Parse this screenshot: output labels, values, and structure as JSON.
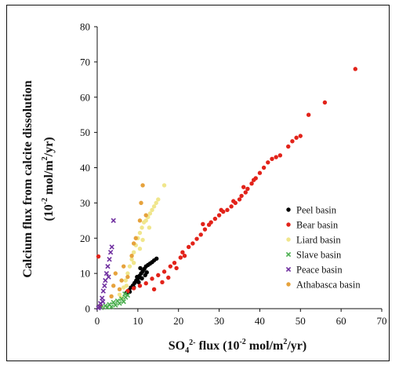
{
  "chart_data": {
    "type": "scatter",
    "xlim": [
      0,
      70
    ],
    "ylim": [
      0,
      80
    ],
    "x_ticks": [
      "0",
      "10",
      "20",
      "30",
      "40",
      "50",
      "60",
      "70"
    ],
    "y_ticks": [
      "0",
      "10",
      "20",
      "30",
      "40",
      "50",
      "60",
      "70",
      "80"
    ],
    "xlabel": {
      "base": "SO",
      "sub": "4",
      "sup": "2-",
      "rest": " flux (10",
      "exp": "-2",
      "rest2": " mol/m",
      "sq": "2",
      "rest3": "/yr)"
    },
    "ylabel_line1": "Calcium flux from calcite dissolution",
    "ylabel_line2": {
      "pre": "(10",
      "exp": "-2",
      "mid": " mol/m",
      "sq": "2",
      "post": "/yr)"
    },
    "legend_position": "lower-right",
    "grid": false,
    "series": [
      {
        "name": "Peel basin",
        "color": "#000000",
        "marker": "circle",
        "points": [
          [
            7.2,
            4.5
          ],
          [
            7.8,
            5.2
          ],
          [
            8.3,
            6.0
          ],
          [
            8.8,
            6.6
          ],
          [
            9.2,
            7.3
          ],
          [
            9.6,
            8.0
          ],
          [
            10.0,
            8.5
          ],
          [
            10.4,
            9.3
          ],
          [
            10.8,
            10.0
          ],
          [
            11.2,
            10.6
          ],
          [
            11.6,
            11.3
          ],
          [
            12.0,
            12.0
          ],
          [
            12.5,
            12.4
          ],
          [
            13.0,
            12.8
          ],
          [
            13.5,
            13.2
          ],
          [
            14.0,
            13.7
          ],
          [
            14.6,
            14.2
          ],
          [
            9.0,
            6.0
          ],
          [
            10.2,
            7.5
          ],
          [
            11.0,
            8.6
          ],
          [
            12.2,
            10.3
          ],
          [
            8.0,
            4.8
          ],
          [
            9.8,
            9.0
          ],
          [
            10.6,
            11.5
          ],
          [
            11.8,
            9.5
          ]
        ]
      },
      {
        "name": "Bear basin",
        "color": "#e2231a",
        "marker": "circle",
        "points": [
          [
            0.3,
            14.8
          ],
          [
            0.8,
            0.5
          ],
          [
            7.5,
            5.0
          ],
          [
            9.0,
            5.8
          ],
          [
            10.5,
            6.5
          ],
          [
            12.0,
            7.2
          ],
          [
            13.5,
            8.5
          ],
          [
            15.0,
            9.5
          ],
          [
            16.5,
            10.5
          ],
          [
            18.0,
            12.0
          ],
          [
            19.0,
            13.0
          ],
          [
            20.5,
            14.5
          ],
          [
            21.0,
            16.0
          ],
          [
            22.5,
            17.5
          ],
          [
            23.5,
            18.5
          ],
          [
            24.5,
            19.8
          ],
          [
            25.5,
            21.0
          ],
          [
            26.5,
            22.5
          ],
          [
            27.5,
            23.8
          ],
          [
            28.0,
            24.5
          ],
          [
            29.0,
            25.5
          ],
          [
            30.0,
            26.5
          ],
          [
            31.0,
            27.5
          ],
          [
            32.0,
            28.0
          ],
          [
            33.0,
            29.0
          ],
          [
            34.0,
            30.0
          ],
          [
            35.0,
            31.0
          ],
          [
            35.5,
            32.0
          ],
          [
            36.5,
            33.0
          ],
          [
            37.0,
            34.0
          ],
          [
            38.0,
            35.5
          ],
          [
            39.0,
            37.0
          ],
          [
            40.0,
            38.5
          ],
          [
            41.0,
            40.0
          ],
          [
            42.0,
            41.5
          ],
          [
            43.0,
            42.5
          ],
          [
            45.0,
            43.5
          ],
          [
            47.0,
            46.0
          ],
          [
            48.0,
            47.5
          ],
          [
            50.0,
            49.0
          ],
          [
            52.0,
            55.0
          ],
          [
            56.0,
            58.5
          ],
          [
            63.5,
            68.0
          ],
          [
            14.0,
            5.5
          ],
          [
            16.0,
            7.5
          ],
          [
            17.5,
            8.8
          ],
          [
            19.5,
            11.5
          ],
          [
            21.5,
            15.0
          ],
          [
            26.0,
            24.0
          ],
          [
            30.5,
            28.0
          ],
          [
            33.5,
            30.5
          ],
          [
            36.0,
            34.5
          ],
          [
            38.5,
            36.5
          ],
          [
            44.0,
            43.0
          ],
          [
            49.0,
            48.5
          ]
        ]
      },
      {
        "name": "Liard basin",
        "color": "#f0e68c",
        "marker": "circle",
        "points": [
          [
            5.5,
            4.0
          ],
          [
            6.5,
            6.0
          ],
          [
            7.0,
            8.0
          ],
          [
            7.5,
            10.0
          ],
          [
            8.0,
            12.0
          ],
          [
            8.5,
            14.0
          ],
          [
            9.0,
            16.0
          ],
          [
            9.5,
            18.0
          ],
          [
            10.0,
            20.0
          ],
          [
            10.5,
            21.5
          ],
          [
            11.0,
            23.0
          ],
          [
            11.5,
            24.5
          ],
          [
            12.0,
            25.0
          ],
          [
            12.5,
            26.0
          ],
          [
            13.0,
            27.0
          ],
          [
            13.5,
            28.0
          ],
          [
            14.0,
            29.0
          ],
          [
            14.5,
            30.0
          ],
          [
            15.0,
            31.0
          ],
          [
            16.5,
            35.0
          ],
          [
            9.0,
            13.0
          ],
          [
            10.5,
            17.0
          ],
          [
            11.2,
            19.5
          ],
          [
            12.8,
            23.0
          ],
          [
            6.0,
            3.0
          ],
          [
            7.2,
            6.5
          ]
        ]
      },
      {
        "name": "Slave basin",
        "color": "#4caf50",
        "marker": "cross",
        "points": [
          [
            1.0,
            0.3
          ],
          [
            2.0,
            0.8
          ],
          [
            3.0,
            1.2
          ],
          [
            4.0,
            1.8
          ],
          [
            5.0,
            2.2
          ],
          [
            6.0,
            2.8
          ],
          [
            7.0,
            3.2
          ],
          [
            7.5,
            3.8
          ],
          [
            4.5,
            1.0
          ],
          [
            5.5,
            1.5
          ],
          [
            6.5,
            2.0
          ],
          [
            3.5,
            0.5
          ],
          [
            2.5,
            0.4
          ],
          [
            6.8,
            4.2
          ]
        ]
      },
      {
        "name": "Peace basin",
        "color": "#7030a0",
        "marker": "cross",
        "points": [
          [
            0.3,
            0.2
          ],
          [
            0.8,
            1.5
          ],
          [
            1.2,
            3.0
          ],
          [
            1.5,
            5.0
          ],
          [
            1.8,
            6.5
          ],
          [
            2.0,
            8.0
          ],
          [
            2.3,
            10.0
          ],
          [
            2.6,
            12.0
          ],
          [
            3.0,
            14.0
          ],
          [
            3.3,
            16.0
          ],
          [
            3.6,
            17.5
          ],
          [
            4.0,
            25.0
          ],
          [
            2.8,
            9.0
          ],
          [
            1.4,
            2.0
          ],
          [
            0.6,
            0.5
          ]
        ]
      },
      {
        "name": "Athabasca basin",
        "color": "#e6a23c",
        "marker": "circle",
        "points": [
          [
            11.2,
            35.0
          ],
          [
            10.8,
            30.0
          ],
          [
            10.5,
            25.0
          ],
          [
            9.5,
            20.0
          ],
          [
            8.5,
            15.0
          ],
          [
            6.5,
            12.0
          ],
          [
            4.5,
            10.0
          ],
          [
            4.0,
            6.5
          ],
          [
            3.5,
            3.5
          ],
          [
            5.5,
            5.5
          ],
          [
            7.5,
            9.0
          ],
          [
            12.0,
            26.5
          ],
          [
            9.0,
            18.5
          ],
          [
            6.0,
            8.0
          ]
        ]
      }
    ]
  }
}
